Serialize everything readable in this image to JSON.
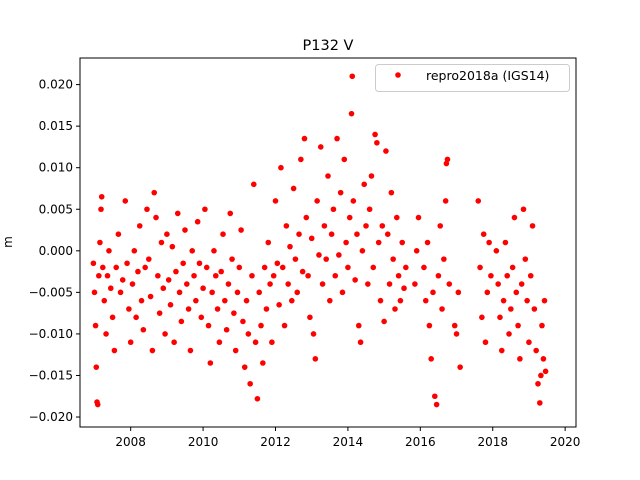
{
  "chart_data": {
    "type": "scatter",
    "title": "P132 V",
    "xlabel": "",
    "ylabel": "m",
    "xlim": [
      2006.6,
      2020.3
    ],
    "ylim": [
      -0.0212,
      0.0232
    ],
    "xticks": [
      2008,
      2010,
      2012,
      2014,
      2016,
      2018,
      2020
    ],
    "xtick_labels": [
      "2008",
      "2010",
      "2012",
      "2014",
      "2016",
      "2018",
      "2020"
    ],
    "yticks": [
      -0.02,
      -0.015,
      -0.01,
      -0.005,
      0.0,
      0.005,
      0.01,
      0.015,
      0.02
    ],
    "ytick_labels": [
      "−0.020",
      "−0.015",
      "−0.010",
      "−0.005",
      "0.000",
      "0.005",
      "0.010",
      "0.015",
      "0.020"
    ],
    "grid": false,
    "legend_position": "top-right",
    "series": [
      {
        "name": "repro2018a (IGS14)",
        "color": "#ff0000",
        "marker": "circle",
        "points": [
          [
            2006.97,
            -0.0015
          ],
          [
            2007.0,
            -0.005
          ],
          [
            2007.03,
            -0.009
          ],
          [
            2007.05,
            -0.014
          ],
          [
            2007.07,
            -0.0182
          ],
          [
            2007.09,
            -0.0185
          ],
          [
            2007.12,
            -0.003
          ],
          [
            2007.15,
            0.001
          ],
          [
            2007.18,
            0.005
          ],
          [
            2007.2,
            0.0065
          ],
          [
            2007.23,
            -0.002
          ],
          [
            2007.27,
            -0.006
          ],
          [
            2007.32,
            -0.01
          ],
          [
            2007.36,
            -0.003
          ],
          [
            2007.4,
            0.0
          ],
          [
            2007.45,
            -0.0045
          ],
          [
            2007.5,
            -0.008
          ],
          [
            2007.55,
            -0.012
          ],
          [
            2007.6,
            -0.002
          ],
          [
            2007.66,
            0.002
          ],
          [
            2007.72,
            -0.005
          ],
          [
            2007.78,
            -0.0035
          ],
          [
            2007.85,
            0.006
          ],
          [
            2007.9,
            -0.0015
          ],
          [
            2007.95,
            -0.007
          ],
          [
            2008.0,
            -0.011
          ],
          [
            2008.05,
            -0.004
          ],
          [
            2008.1,
            0.0
          ],
          [
            2008.15,
            -0.008
          ],
          [
            2008.2,
            -0.0025
          ],
          [
            2008.25,
            0.003
          ],
          [
            2008.3,
            -0.006
          ],
          [
            2008.35,
            -0.0095
          ],
          [
            2008.4,
            -0.002
          ],
          [
            2008.45,
            0.005
          ],
          [
            2008.5,
            -0.001
          ],
          [
            2008.55,
            -0.0055
          ],
          [
            2008.6,
            -0.012
          ],
          [
            2008.65,
            0.007
          ],
          [
            2008.7,
            0.004
          ],
          [
            2008.75,
            -0.003
          ],
          [
            2008.8,
            -0.0075
          ],
          [
            2008.85,
            0.001
          ],
          [
            2008.9,
            -0.0045
          ],
          [
            2008.95,
            -0.01
          ],
          [
            2009.0,
            0.002
          ],
          [
            2009.05,
            -0.0035
          ],
          [
            2009.1,
            -0.0065
          ],
          [
            2009.15,
            0.0005
          ],
          [
            2009.2,
            -0.011
          ],
          [
            2009.25,
            -0.0025
          ],
          [
            2009.3,
            0.0045
          ],
          [
            2009.35,
            -0.005
          ],
          [
            2009.4,
            -0.0085
          ],
          [
            2009.45,
            -0.0015
          ],
          [
            2009.5,
            0.0025
          ],
          [
            2009.55,
            -0.004
          ],
          [
            2009.6,
            -0.007
          ],
          [
            2009.65,
            -0.012
          ],
          [
            2009.7,
            0.0
          ],
          [
            2009.75,
            -0.003
          ],
          [
            2009.8,
            -0.006
          ],
          [
            2009.85,
            0.0035
          ],
          [
            2009.9,
            -0.0015
          ],
          [
            2009.95,
            -0.008
          ],
          [
            2010.0,
            -0.0045
          ],
          [
            2010.05,
            0.005
          ],
          [
            2010.1,
            -0.002
          ],
          [
            2010.15,
            -0.009
          ],
          [
            2010.2,
            -0.0135
          ],
          [
            2010.25,
            -0.005
          ],
          [
            2010.3,
            0.0
          ],
          [
            2010.35,
            -0.003
          ],
          [
            2010.4,
            -0.007
          ],
          [
            2010.45,
            -0.011
          ],
          [
            2010.5,
            -0.0025
          ],
          [
            2010.55,
            0.002
          ],
          [
            2010.6,
            -0.006
          ],
          [
            2010.65,
            -0.0095
          ],
          [
            2010.7,
            -0.004
          ],
          [
            2010.75,
            0.0045
          ],
          [
            2010.8,
            -0.001
          ],
          [
            2010.85,
            -0.0075
          ],
          [
            2010.9,
            -0.012
          ],
          [
            2010.95,
            -0.005
          ],
          [
            2011.0,
            -0.002
          ],
          [
            2011.05,
            0.0025
          ],
          [
            2011.1,
            -0.0085
          ],
          [
            2011.15,
            -0.014
          ],
          [
            2011.2,
            -0.006
          ],
          [
            2011.25,
            -0.01
          ],
          [
            2011.3,
            -0.016
          ],
          [
            2011.35,
            -0.003
          ],
          [
            2011.4,
            0.008
          ],
          [
            2011.45,
            -0.011
          ],
          [
            2011.5,
            -0.0178
          ],
          [
            2011.55,
            -0.005
          ],
          [
            2011.6,
            -0.009
          ],
          [
            2011.65,
            -0.0135
          ],
          [
            2011.7,
            -0.002
          ],
          [
            2011.75,
            -0.007
          ],
          [
            2011.8,
            0.001
          ],
          [
            2011.85,
            -0.004
          ],
          [
            2011.9,
            -0.011
          ],
          [
            2011.95,
            -0.003
          ],
          [
            2012.0,
            0.006
          ],
          [
            2012.05,
            -0.0015
          ],
          [
            2012.1,
            -0.0065
          ],
          [
            2012.15,
            0.01
          ],
          [
            2012.2,
            -0.002
          ],
          [
            2012.25,
            -0.009
          ],
          [
            2012.3,
            0.003
          ],
          [
            2012.35,
            -0.004
          ],
          [
            2012.4,
            0.0005
          ],
          [
            2012.45,
            -0.006
          ],
          [
            2012.5,
            0.0075
          ],
          [
            2012.55,
            -0.001
          ],
          [
            2012.6,
            -0.005
          ],
          [
            2012.65,
            0.002
          ],
          [
            2012.7,
            0.011
          ],
          [
            2012.75,
            -0.0025
          ],
          [
            2012.8,
            0.0135
          ],
          [
            2012.85,
            0.004
          ],
          [
            2012.9,
            -0.003
          ],
          [
            2012.95,
            -0.008
          ],
          [
            2013.0,
            0.0015
          ],
          [
            2013.05,
            -0.01
          ],
          [
            2013.1,
            -0.013
          ],
          [
            2013.15,
            0.006
          ],
          [
            2013.2,
            -0.0005
          ],
          [
            2013.25,
            0.0125
          ],
          [
            2013.3,
            -0.004
          ],
          [
            2013.35,
            0.003
          ],
          [
            2013.4,
            -0.001
          ],
          [
            2013.45,
            0.009
          ],
          [
            2013.5,
            -0.006
          ],
          [
            2013.55,
            0.002
          ],
          [
            2013.6,
            0.005
          ],
          [
            2013.65,
            -0.003
          ],
          [
            2013.7,
            0.0135
          ],
          [
            2013.75,
            -0.0005
          ],
          [
            2013.8,
            0.007
          ],
          [
            2013.85,
            -0.005
          ],
          [
            2013.9,
            0.011
          ],
          [
            2013.95,
            0.001
          ],
          [
            2014.0,
            -0.002
          ],
          [
            2014.05,
            0.004
          ],
          [
            2014.1,
            0.0165
          ],
          [
            2014.12,
            0.021
          ],
          [
            2014.15,
            0.006
          ],
          [
            2014.2,
            -0.0035
          ],
          [
            2014.25,
            0.002
          ],
          [
            2014.3,
            -0.009
          ],
          [
            2014.35,
            -0.011
          ],
          [
            2014.4,
            0.0
          ],
          [
            2014.45,
            0.008
          ],
          [
            2014.5,
            0.003
          ],
          [
            2014.55,
            -0.004
          ],
          [
            2014.6,
            0.005
          ],
          [
            2014.65,
            0.009
          ],
          [
            2014.7,
            -0.002
          ],
          [
            2014.75,
            0.014
          ],
          [
            2014.8,
            0.013
          ],
          [
            2014.85,
            0.001
          ],
          [
            2014.9,
            -0.006
          ],
          [
            2014.95,
            0.003
          ],
          [
            2015.0,
            -0.0085
          ],
          [
            2015.05,
            0.012
          ],
          [
            2015.1,
            0.002
          ],
          [
            2015.15,
            -0.004
          ],
          [
            2015.2,
            0.007
          ],
          [
            2015.25,
            -0.001
          ],
          [
            2015.3,
            -0.007
          ],
          [
            2015.35,
            0.004
          ],
          [
            2015.4,
            -0.003
          ],
          [
            2015.45,
            -0.006
          ],
          [
            2015.5,
            0.001
          ],
          [
            2015.55,
            -0.0045
          ],
          [
            2015.6,
            -0.002
          ],
          [
            2015.85,
            -0.004
          ],
          [
            2015.9,
            0.0
          ],
          [
            2015.95,
            0.004
          ],
          [
            2016.1,
            -0.002
          ],
          [
            2016.15,
            -0.006
          ],
          [
            2016.2,
            0.001
          ],
          [
            2016.25,
            -0.009
          ],
          [
            2016.3,
            -0.013
          ],
          [
            2016.35,
            -0.005
          ],
          [
            2016.4,
            -0.0175
          ],
          [
            2016.45,
            -0.0185
          ],
          [
            2016.5,
            -0.003
          ],
          [
            2016.55,
            0.003
          ],
          [
            2016.6,
            -0.007
          ],
          [
            2016.65,
            -0.001
          ],
          [
            2016.7,
            0.006
          ],
          [
            2016.72,
            0.0105
          ],
          [
            2016.75,
            0.011
          ],
          [
            2016.8,
            -0.004
          ],
          [
            2016.95,
            -0.009
          ],
          [
            2017.0,
            -0.01
          ],
          [
            2017.05,
            -0.005
          ],
          [
            2017.1,
            -0.014
          ],
          [
            2017.6,
            0.006
          ],
          [
            2017.65,
            -0.002
          ],
          [
            2017.7,
            -0.008
          ],
          [
            2017.75,
            0.002
          ],
          [
            2017.8,
            -0.011
          ],
          [
            2017.85,
            -0.005
          ],
          [
            2017.9,
            0.001
          ],
          [
            2017.95,
            -0.003
          ],
          [
            2018.1,
            0.0
          ],
          [
            2018.15,
            -0.004
          ],
          [
            2018.2,
            -0.008
          ],
          [
            2018.25,
            -0.012
          ],
          [
            2018.3,
            -0.006
          ],
          [
            2018.35,
            0.001
          ],
          [
            2018.4,
            -0.003
          ],
          [
            2018.45,
            -0.01
          ],
          [
            2018.5,
            -0.007
          ],
          [
            2018.55,
            -0.002
          ],
          [
            2018.6,
            0.004
          ],
          [
            2018.65,
            -0.005
          ],
          [
            2018.7,
            -0.009
          ],
          [
            2018.75,
            -0.013
          ],
          [
            2018.8,
            -0.004
          ],
          [
            2018.85,
            0.005
          ],
          [
            2018.9,
            -0.001
          ],
          [
            2018.95,
            -0.006
          ],
          [
            2019.0,
            -0.011
          ],
          [
            2019.05,
            -0.003
          ],
          [
            2019.1,
            0.003
          ],
          [
            2019.15,
            -0.007
          ],
          [
            2019.2,
            -0.012
          ],
          [
            2019.25,
            -0.016
          ],
          [
            2019.3,
            -0.0183
          ],
          [
            2019.33,
            -0.015
          ],
          [
            2019.36,
            -0.009
          ],
          [
            2019.4,
            -0.013
          ],
          [
            2019.43,
            -0.006
          ],
          [
            2019.46,
            -0.0145
          ]
        ]
      }
    ]
  }
}
